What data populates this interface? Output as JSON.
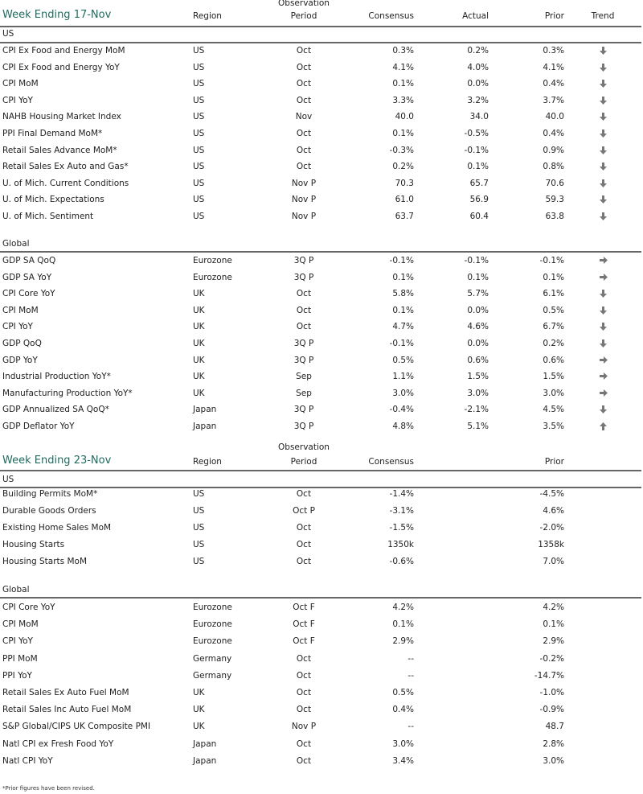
{
  "colors": {
    "title": "#1f6b60",
    "arrow": "#777777"
  },
  "tables": [
    {
      "title": "Week Ending 17-Nov",
      "headers": {
        "region": "Region",
        "period_top": "Observation",
        "period": "Period",
        "consensus": "Consensus",
        "actual": "Actual",
        "prior": "Prior",
        "trend": "Trend"
      },
      "groups": [
        {
          "label": "US",
          "rows": [
            {
              "name": "CPI Ex Food and Energy MoM",
              "region": "US",
              "period": "Oct",
              "consensus": "0.3%",
              "actual": "0.2%",
              "prior": "0.3%",
              "trend": "down-arrow-icon"
            },
            {
              "name": "CPI Ex Food and Energy YoY",
              "region": "US",
              "period": "Oct",
              "consensus": "4.1%",
              "actual": "4.0%",
              "prior": "4.1%",
              "trend": "down-arrow-icon"
            },
            {
              "name": "CPI MoM",
              "region": "US",
              "period": "Oct",
              "consensus": "0.1%",
              "actual": "0.0%",
              "prior": "0.4%",
              "trend": "down-arrow-icon"
            },
            {
              "name": "CPI YoY",
              "region": "US",
              "period": "Oct",
              "consensus": "3.3%",
              "actual": "3.2%",
              "prior": "3.7%",
              "trend": "down-arrow-icon"
            },
            {
              "name": "NAHB Housing Market Index",
              "region": "US",
              "period": "Nov",
              "consensus": "40.0",
              "actual": "34.0",
              "prior": "40.0",
              "trend": "down-arrow-icon"
            },
            {
              "name": "PPI Final Demand MoM*",
              "region": "US",
              "period": "Oct",
              "consensus": "0.1%",
              "actual": "-0.5%",
              "prior": "0.4%",
              "trend": "down-arrow-icon"
            },
            {
              "name": "Retail Sales Advance MoM*",
              "region": "US",
              "period": "Oct",
              "consensus": "-0.3%",
              "actual": "-0.1%",
              "prior": "0.9%",
              "trend": "down-arrow-icon"
            },
            {
              "name": "Retail Sales Ex Auto and Gas*",
              "region": "US",
              "period": "Oct",
              "consensus": "0.2%",
              "actual": "0.1%",
              "prior": "0.8%",
              "trend": "down-arrow-icon"
            },
            {
              "name": "U. of Mich. Current Conditions",
              "region": "US",
              "period": "Nov P",
              "consensus": "70.3",
              "actual": "65.7",
              "prior": "70.6",
              "trend": "down-arrow-icon"
            },
            {
              "name": "U. of Mich. Expectations",
              "region": "US",
              "period": "Nov P",
              "consensus": "61.0",
              "actual": "56.9",
              "prior": "59.3",
              "trend": "down-arrow-icon"
            },
            {
              "name": "U. of Mich. Sentiment",
              "region": "US",
              "period": "Nov P",
              "consensus": "63.7",
              "actual": "60.4",
              "prior": "63.8",
              "trend": "down-arrow-icon"
            }
          ]
        },
        {
          "label": "Global",
          "rows": [
            {
              "name": "GDP SA QoQ",
              "region": "Eurozone",
              "period": "3Q P",
              "consensus": "-0.1%",
              "actual": "-0.1%",
              "prior": "-0.1%",
              "trend": "right-arrow-icon"
            },
            {
              "name": "GDP SA YoY",
              "region": "Eurozone",
              "period": "3Q P",
              "consensus": "0.1%",
              "actual": "0.1%",
              "prior": "0.1%",
              "trend": "right-arrow-icon"
            },
            {
              "name": "CPI Core YoY",
              "region": "UK",
              "period": "Oct",
              "consensus": "5.8%",
              "actual": "5.7%",
              "prior": "6.1%",
              "trend": "down-arrow-icon"
            },
            {
              "name": "CPI MoM",
              "region": "UK",
              "period": "Oct",
              "consensus": "0.1%",
              "actual": "0.0%",
              "prior": "0.5%",
              "trend": "down-arrow-icon"
            },
            {
              "name": "CPI YoY",
              "region": "UK",
              "period": "Oct",
              "consensus": "4.7%",
              "actual": "4.6%",
              "prior": "6.7%",
              "trend": "down-arrow-icon"
            },
            {
              "name": "GDP QoQ",
              "region": "UK",
              "period": "3Q P",
              "consensus": "-0.1%",
              "actual": "0.0%",
              "prior": "0.2%",
              "trend": "down-arrow-icon"
            },
            {
              "name": "GDP YoY",
              "region": "UK",
              "period": "3Q P",
              "consensus": "0.5%",
              "actual": "0.6%",
              "prior": "0.6%",
              "trend": "right-arrow-icon"
            },
            {
              "name": "Industrial Production YoY*",
              "region": "UK",
              "period": "Sep",
              "consensus": "1.1%",
              "actual": "1.5%",
              "prior": "1.5%",
              "trend": "right-arrow-icon"
            },
            {
              "name": "Manufacturing Production YoY*",
              "region": "UK",
              "period": "Sep",
              "consensus": "3.0%",
              "actual": "3.0%",
              "prior": "3.0%",
              "trend": "right-arrow-icon"
            },
            {
              "name": "GDP Annualized SA QoQ*",
              "region": "Japan",
              "period": "3Q P",
              "consensus": "-0.4%",
              "actual": "-2.1%",
              "prior": "4.5%",
              "trend": "down-arrow-icon"
            },
            {
              "name": "GDP Deflator YoY",
              "region": "Japan",
              "period": "3Q P",
              "consensus": "4.8%",
              "actual": "5.1%",
              "prior": "3.5%",
              "trend": "up-arrow-icon"
            }
          ]
        }
      ]
    },
    {
      "title": "Week Ending 23-Nov",
      "headers": {
        "region": "Region",
        "period_top": "Observation",
        "period": "Period",
        "consensus": "Consensus",
        "prior": "Prior"
      },
      "groups": [
        {
          "label": "US",
          "rows": [
            {
              "name": "Building Permits MoM*",
              "region": "US",
              "period": "Oct",
              "consensus": "-1.4%",
              "prior": "-4.5%"
            },
            {
              "name": "Durable Goods Orders",
              "region": "US",
              "period": "Oct P",
              "consensus": "-3.1%",
              "prior": "4.6%"
            },
            {
              "name": "Existing Home Sales MoM",
              "region": "US",
              "period": "Oct",
              "consensus": "-1.5%",
              "prior": "-2.0%"
            },
            {
              "name": "Housing Starts",
              "region": "US",
              "period": "Oct",
              "consensus": "1350k",
              "prior": "1358k"
            },
            {
              "name": "Housing Starts MoM",
              "region": "US",
              "period": "Oct",
              "consensus": "-0.6%",
              "prior": "7.0%"
            }
          ]
        },
        {
          "label": "Global",
          "rows": [
            {
              "name": "CPI Core YoY",
              "region": "Eurozone",
              "period": "Oct F",
              "consensus": "4.2%",
              "prior": "4.2%"
            },
            {
              "name": "CPI MoM",
              "region": "Eurozone",
              "period": "Oct F",
              "consensus": "0.1%",
              "prior": "0.1%"
            },
            {
              "name": "CPI YoY",
              "region": "Eurozone",
              "period": "Oct F",
              "consensus": "2.9%",
              "prior": "2.9%"
            },
            {
              "name": "PPI MoM",
              "region": "Germany",
              "period": "Oct",
              "consensus": "--",
              "prior": "-0.2%"
            },
            {
              "name": "PPI YoY",
              "region": "Germany",
              "period": "Oct",
              "consensus": "--",
              "prior": "-14.7%"
            },
            {
              "name": "Retail Sales Ex Auto Fuel MoM",
              "region": "UK",
              "period": "Oct",
              "consensus": "0.5%",
              "prior": "-1.0%"
            },
            {
              "name": "Retail Sales Inc Auto Fuel MoM",
              "region": "UK",
              "period": "Oct",
              "consensus": "0.4%",
              "prior": "-0.9%"
            },
            {
              "name": "S&P Global/CIPS UK Composite PMI",
              "region": "UK",
              "period": "Nov P",
              "consensus": "--",
              "prior": "48.7"
            },
            {
              "name": "Natl CPI ex Fresh Food YoY",
              "region": "Japan",
              "period": "Oct",
              "consensus": "3.0%",
              "prior": "2.8%"
            },
            {
              "name": "Natl CPI YoY",
              "region": "Japan",
              "period": "Oct",
              "consensus": "3.4%",
              "prior": "3.0%"
            }
          ]
        }
      ]
    }
  ],
  "footnote": "*Prior figures have been revised."
}
